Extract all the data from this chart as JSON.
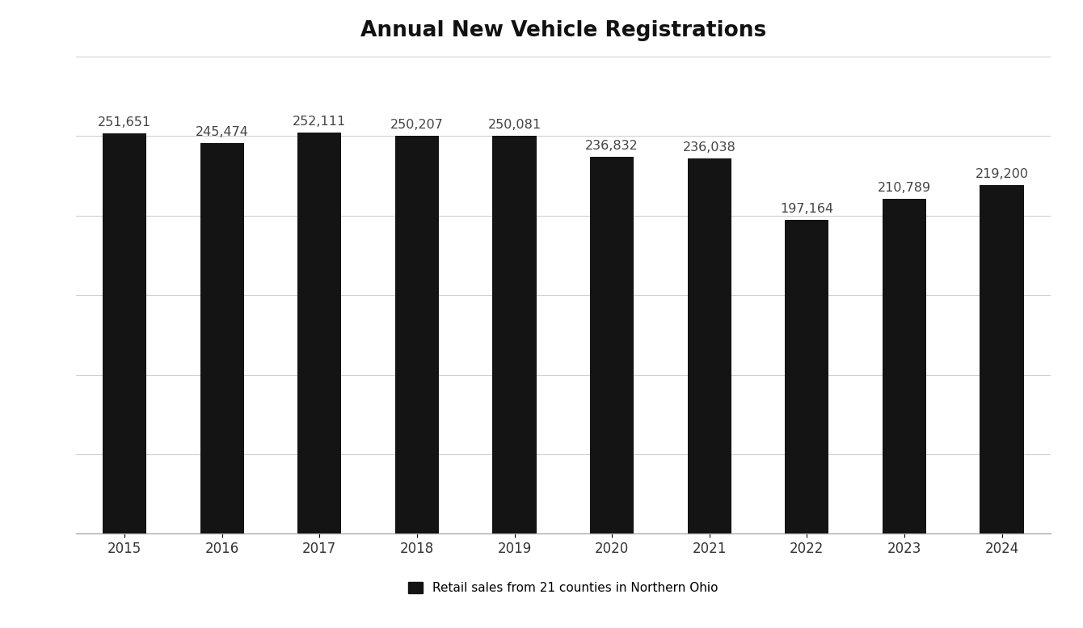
{
  "title": "Annual New Vehicle Registrations",
  "categories": [
    "2015",
    "2016",
    "2017",
    "2018",
    "2019",
    "2020",
    "2021",
    "2022",
    "2023",
    "2024"
  ],
  "values": [
    251651,
    245474,
    252111,
    250207,
    250081,
    236832,
    236038,
    197164,
    210789,
    219200
  ],
  "labels": [
    "251,651",
    "245,474",
    "252,111",
    "250,207",
    "250,081",
    "236,832",
    "236,038",
    "197,164",
    "210,789",
    "219,200"
  ],
  "bar_color": "#141414",
  "background_color": "#ffffff",
  "legend_label": "Retail sales from 21 counties in Northern Ohio",
  "title_fontsize": 19,
  "label_fontsize": 11.5,
  "tick_fontsize": 12,
  "legend_fontsize": 11,
  "ylim": [
    0,
    300000
  ],
  "grid_color": "#d0d0d0",
  "grid_values": [
    50000,
    100000,
    150000,
    200000,
    250000,
    300000
  ],
  "bar_width": 0.45
}
